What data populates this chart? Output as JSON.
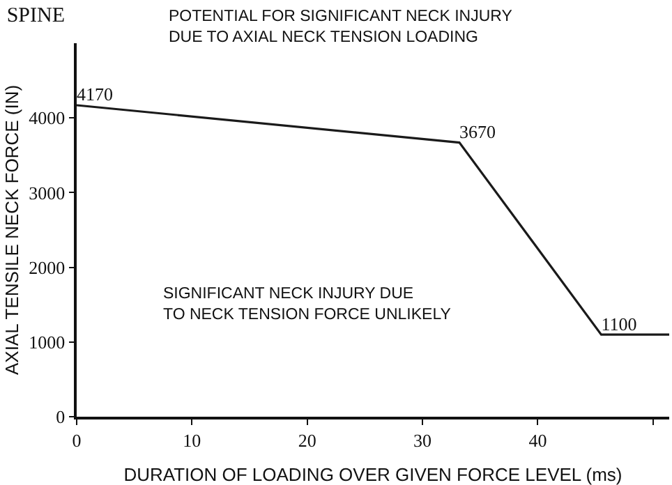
{
  "chart_data": {
    "type": "line",
    "title": "SPINE",
    "xlabel": "DURATION OF LOADING OVER GIVEN FORCE LEVEL (ms)",
    "ylabel": "AXIAL TENSILE NECK FORCE (IN)",
    "x": [
      0,
      33.2,
      45.5,
      51.4
    ],
    "series": [
      {
        "color": "#1a1a1a",
        "values": [
          4170,
          3670,
          1100,
          1100
        ],
        "value_labels": [
          "4170",
          "3670",
          "1100",
          null
        ]
      }
    ],
    "xlim": [
      0,
      51.4
    ],
    "xticks": [
      0,
      10,
      20,
      30,
      40,
      {
        "value": 50,
        "label": null
      }
    ],
    "ylim": [
      0,
      5000
    ],
    "yticks": [
      0,
      1000,
      2000,
      3000,
      4000
    ],
    "annotations": [
      "POTENTIAL FOR SIGNIFICANT NECK INJURY\nDUE TO AXIAL NECK TENSION LOADING",
      "SIGNIFICANT NECK INJURY DUE\nTO NECK TENSION FORCE UNLIKELY"
    ],
    "marker": "none",
    "line_style": "solid"
  }
}
